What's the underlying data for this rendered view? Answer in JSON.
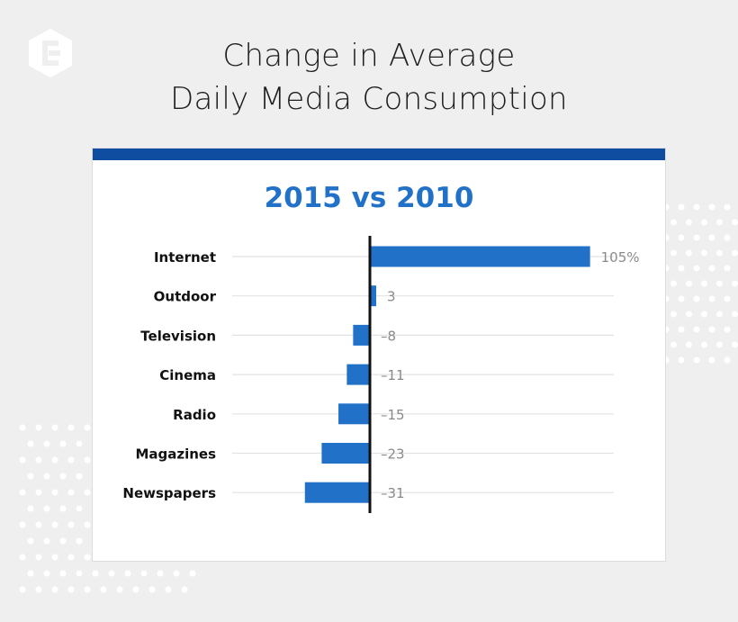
{
  "header": {
    "title_line1": "Change in Average",
    "title_line2": "Daily Media Consumption"
  },
  "brand": {
    "logo_icon": "conductor-logo-icon"
  },
  "colors": {
    "bar": "#2271c9",
    "card_bar": "#0f4da0",
    "subtitle": "#2271c9",
    "value_label": "#8a8a8a",
    "gridline": "#e2e2e2",
    "axis": "#111111"
  },
  "chart_data": {
    "type": "bar",
    "orientation": "horizontal",
    "title": "2015 vs 2010",
    "categories": [
      "Internet",
      "Outdoor",
      "Television",
      "Cinema",
      "Radio",
      "Magazines",
      "Newspapers"
    ],
    "values": [
      105,
      3,
      -8,
      -11,
      -15,
      -23,
      -31
    ],
    "value_labels": [
      "105%",
      "3",
      "–8",
      "–11",
      "–15",
      "–23",
      "–31"
    ],
    "xlabel": "",
    "ylabel": "",
    "unit": "%",
    "xlim": [
      -53,
      117
    ],
    "grid": true,
    "legend": "none"
  }
}
